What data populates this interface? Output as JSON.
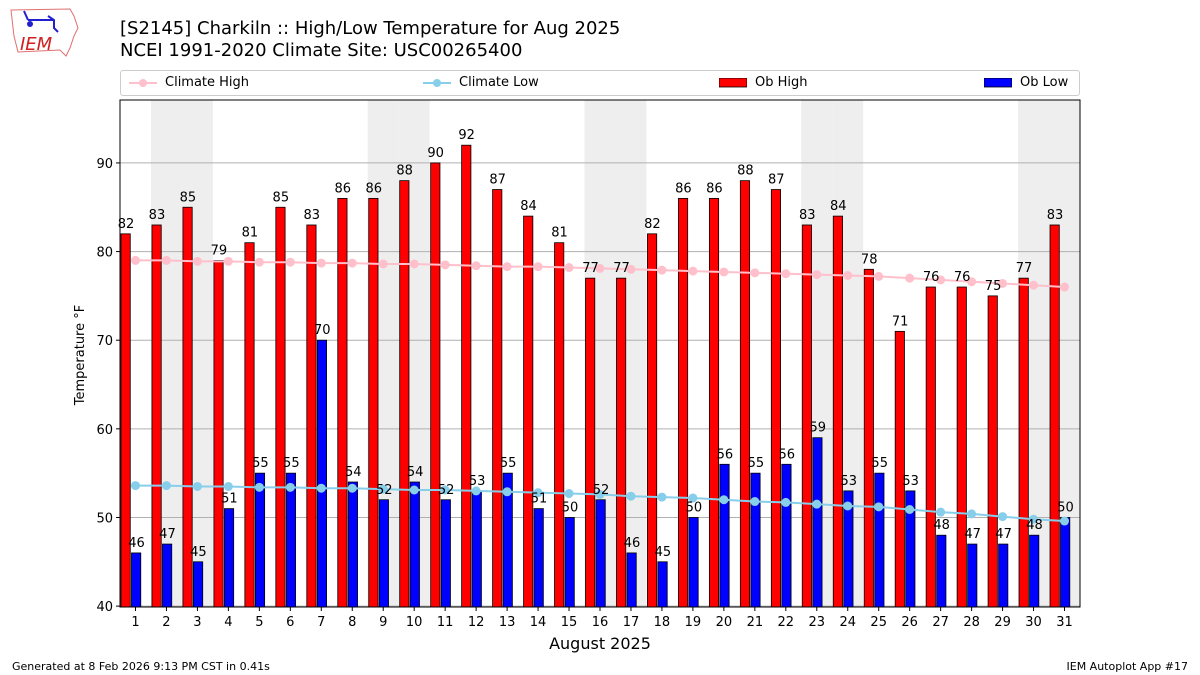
{
  "header": {
    "title_line1": "[S2145] Charkiln :: High/Low Temperature for Aug 2025",
    "title_line2": "NCEI 1991-2020 Climate Site: USC00265400",
    "logo_text": "IEM"
  },
  "legend": {
    "climate_high": "Climate High",
    "climate_low": "Climate Low",
    "ob_high": "Ob High",
    "ob_low": "Ob Low"
  },
  "colors": {
    "ob_high": "#ff0000",
    "ob_low": "#0000ff",
    "climate_high": "#ffc0cb",
    "climate_low": "#87ceeb",
    "weekend": "#eeeeee"
  },
  "footer": {
    "left": "Generated at 8 Feb 2026 9:13 PM CST in 0.41s",
    "right": "IEM Autoplot App #17"
  },
  "chart_data": {
    "type": "bar",
    "title": "[S2145] Charkiln :: High/Low Temperature for Aug 2025",
    "xlabel": "August 2025",
    "ylabel": "Temperature °F",
    "ylim": [
      39.9,
      97.1
    ],
    "xlim": [
      0.5,
      31.5
    ],
    "yticks": [
      40,
      50,
      60,
      70,
      80,
      90
    ],
    "grid": true,
    "legend_placement": "top",
    "weekend_days": [
      2,
      3,
      9,
      10,
      16,
      17,
      23,
      24,
      30,
      31
    ],
    "x": [
      1,
      2,
      3,
      4,
      5,
      6,
      7,
      8,
      9,
      10,
      11,
      12,
      13,
      14,
      15,
      16,
      17,
      18,
      19,
      20,
      21,
      22,
      23,
      24,
      25,
      26,
      27,
      28,
      29,
      30,
      31
    ],
    "series": [
      {
        "name": "Ob High",
        "values": [
          82,
          83,
          85,
          79,
          81,
          85,
          83,
          86,
          86,
          88,
          90,
          92,
          87,
          84,
          81,
          77,
          77,
          82,
          86,
          86,
          88,
          87,
          83,
          84,
          78,
          71,
          76,
          76,
          75,
          77,
          83
        ]
      },
      {
        "name": "Ob Low",
        "values": [
          46,
          47,
          45,
          51,
          55,
          55,
          70,
          54,
          52,
          54,
          52,
          53,
          55,
          51,
          50,
          52,
          46,
          45,
          50,
          56,
          55,
          56,
          59,
          53,
          55,
          53,
          48,
          47,
          47,
          48,
          50
        ]
      },
      {
        "name": "Climate High",
        "values": [
          79.0,
          79.0,
          78.9,
          78.9,
          78.8,
          78.8,
          78.7,
          78.7,
          78.6,
          78.6,
          78.5,
          78.4,
          78.3,
          78.3,
          78.2,
          78.1,
          78.0,
          77.9,
          77.8,
          77.7,
          77.6,
          77.5,
          77.4,
          77.3,
          77.2,
          77.0,
          76.8,
          76.6,
          76.4,
          76.2,
          76.0
        ]
      },
      {
        "name": "Climate Low",
        "values": [
          53.6,
          53.6,
          53.5,
          53.5,
          53.4,
          53.4,
          53.3,
          53.3,
          53.2,
          53.1,
          53.1,
          53.0,
          52.9,
          52.8,
          52.7,
          52.6,
          52.4,
          52.3,
          52.2,
          52.0,
          51.8,
          51.7,
          51.5,
          51.3,
          51.2,
          50.9,
          50.6,
          50.4,
          50.1,
          49.8,
          49.6
        ]
      }
    ]
  }
}
